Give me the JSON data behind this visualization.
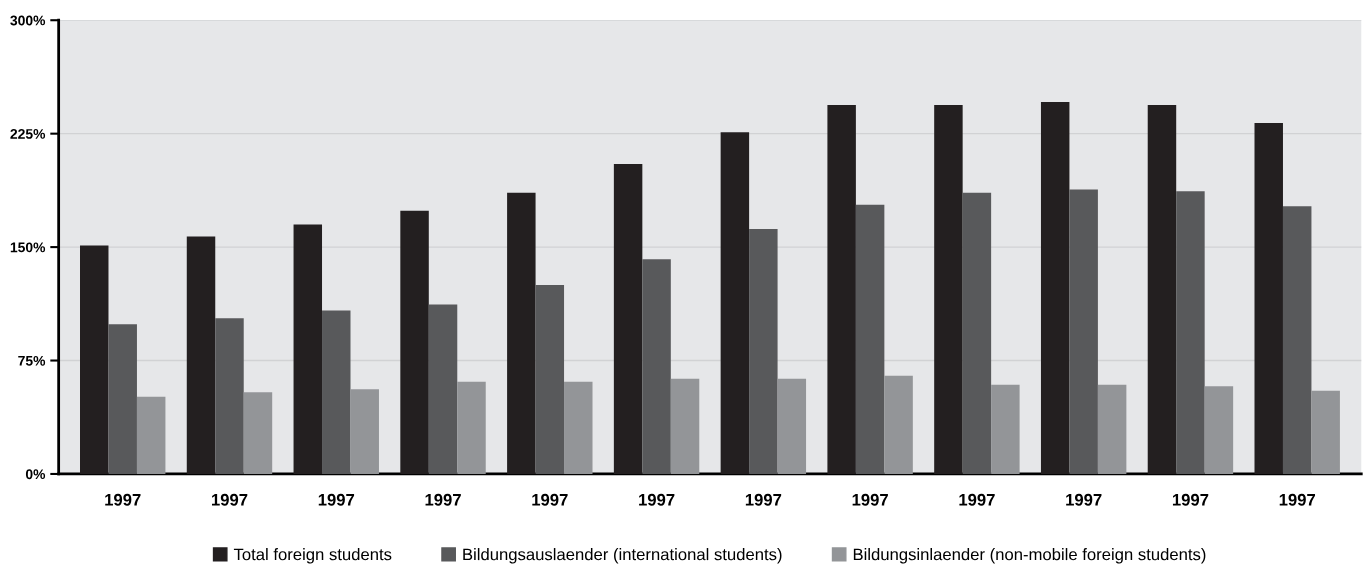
{
  "chart_data": {
    "type": "bar",
    "categories": [
      "1997",
      "1997",
      "1997",
      "1997",
      "1997",
      "1997",
      "1997",
      "1997",
      "1997",
      "1997",
      "1997",
      "1997"
    ],
    "series": [
      {
        "name": "Total foreign students",
        "color": "#231f20",
        "values": [
          151,
          157,
          165,
          174,
          186,
          205,
          226,
          244,
          244,
          246,
          244,
          232
        ]
      },
      {
        "name": "Bildungsauslaender (international students)",
        "color": "#58595b",
        "values": [
          99,
          103,
          108,
          112,
          125,
          142,
          162,
          178,
          186,
          188,
          187,
          177
        ]
      },
      {
        "name": "Bildungsinlaender (non-mobile foreign students)",
        "color": "#939598",
        "values": [
          51,
          54,
          56,
          61,
          61,
          63,
          63,
          65,
          59,
          59,
          58,
          55
        ]
      }
    ],
    "ylim": [
      0,
      300
    ],
    "yticks": [
      {
        "value": 0,
        "label": "0%"
      },
      {
        "value": 75,
        "label": "75%"
      },
      {
        "value": 150,
        "label": "150%"
      },
      {
        "value": 225,
        "label": "225%"
      },
      {
        "value": 300,
        "label": "300%"
      }
    ],
    "grid": "y",
    "legend": "bottom"
  }
}
